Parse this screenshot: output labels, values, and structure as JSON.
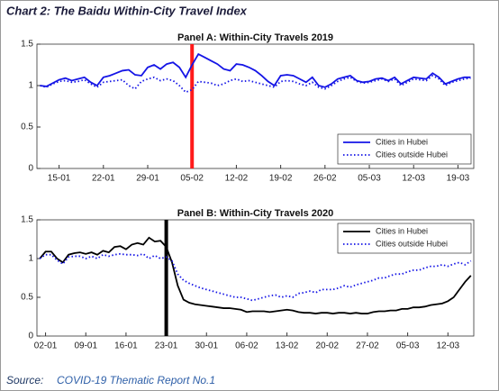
{
  "header": "Chart 2: The Baidu Within-City Travel Index",
  "source_label": "Source:",
  "source": "COVID-19 Thematic Report No.1",
  "chart_data": [
    {
      "type": "line",
      "title": "Panel A: Within-City Travels 2019",
      "categories": [
        null,
        null,
        null,
        "15-01",
        null,
        null,
        null,
        null,
        null,
        null,
        "22-01",
        null,
        null,
        null,
        null,
        null,
        null,
        "29-01",
        null,
        null,
        null,
        null,
        null,
        null,
        "05-02",
        null,
        null,
        null,
        null,
        null,
        null,
        "12-02",
        null,
        null,
        null,
        null,
        null,
        null,
        "19-02",
        null,
        null,
        null,
        null,
        null,
        null,
        "26-02",
        null,
        null,
        null,
        null,
        null,
        null,
        "05-03",
        null,
        null,
        null,
        null,
        null,
        null,
        "12-03",
        null,
        null,
        null,
        null,
        null,
        null,
        "19-03",
        null,
        null
      ],
      "series": [
        {
          "name": "Cities in Hubei",
          "color": "#1414e6",
          "style": "solid",
          "values": [
            1.0,
            0.99,
            1.03,
            1.07,
            1.09,
            1.06,
            1.08,
            1.1,
            1.04,
            1.0,
            1.1,
            1.12,
            1.15,
            1.18,
            1.19,
            1.13,
            1.12,
            1.22,
            1.25,
            1.2,
            1.26,
            1.28,
            1.22,
            1.1,
            1.25,
            1.38,
            1.34,
            1.3,
            1.26,
            1.2,
            1.18,
            1.26,
            1.25,
            1.22,
            1.18,
            1.12,
            1.05,
            1.0,
            1.12,
            1.13,
            1.12,
            1.08,
            1.04,
            1.1,
            1.0,
            0.98,
            1.02,
            1.08,
            1.1,
            1.12,
            1.06,
            1.04,
            1.05,
            1.08,
            1.09,
            1.06,
            1.1,
            1.02,
            1.06,
            1.1,
            1.09,
            1.08,
            1.15,
            1.1,
            1.02,
            1.05,
            1.08,
            1.1,
            1.1
          ]
        },
        {
          "name": "Cities outside Hubei",
          "color": "#1414e6",
          "style": "dotted",
          "values": [
            1.0,
            0.98,
            1.02,
            1.05,
            1.06,
            1.04,
            1.05,
            1.07,
            1.02,
            0.98,
            1.04,
            1.05,
            1.06,
            1.07,
            1.0,
            0.96,
            1.05,
            1.08,
            1.1,
            1.06,
            1.08,
            1.06,
            1.0,
            0.92,
            0.95,
            1.05,
            1.04,
            1.03,
            1.0,
            1.02,
            1.06,
            1.08,
            1.05,
            1.06,
            1.04,
            1.02,
            1.0,
            0.98,
            1.05,
            1.06,
            1.05,
            1.02,
            1.0,
            1.04,
            0.98,
            0.96,
            1.0,
            1.05,
            1.08,
            1.1,
            1.05,
            1.03,
            1.04,
            1.06,
            1.08,
            1.05,
            1.08,
            1.0,
            1.04,
            1.08,
            1.07,
            1.06,
            1.12,
            1.08,
            1.0,
            1.04,
            1.06,
            1.08,
            1.09
          ]
        }
      ],
      "vline": {
        "at": "05-02",
        "color": "#ff1a1a"
      },
      "ylim": [
        0,
        1.5
      ],
      "yticks": [
        0,
        0.5,
        1,
        1.5
      ],
      "legend": "lower right",
      "grid": false
    },
    {
      "type": "line",
      "title": "Panel B: Within-City Travels 2020",
      "categories": [
        null,
        "02-01",
        null,
        null,
        null,
        null,
        null,
        null,
        "09-01",
        null,
        null,
        null,
        null,
        null,
        null,
        "16-01",
        null,
        null,
        null,
        null,
        null,
        null,
        "23-01",
        null,
        null,
        null,
        null,
        null,
        null,
        "30-01",
        null,
        null,
        null,
        null,
        null,
        null,
        "06-02",
        null,
        null,
        null,
        null,
        null,
        null,
        "13-02",
        null,
        null,
        null,
        null,
        null,
        null,
        "20-02",
        null,
        null,
        null,
        null,
        null,
        null,
        "27-02",
        null,
        null,
        null,
        null,
        null,
        null,
        "05-03",
        null,
        null,
        null,
        null,
        null,
        null,
        "12-03",
        null,
        null,
        null,
        null
      ],
      "series": [
        {
          "name": "Cities in Hubei",
          "color": "#000000",
          "style": "solid",
          "values": [
            1.0,
            1.09,
            1.09,
            1.0,
            0.95,
            1.05,
            1.07,
            1.08,
            1.06,
            1.08,
            1.05,
            1.1,
            1.08,
            1.15,
            1.16,
            1.12,
            1.18,
            1.2,
            1.18,
            1.27,
            1.22,
            1.23,
            1.15,
            0.95,
            0.65,
            0.47,
            0.43,
            0.41,
            0.4,
            0.39,
            0.38,
            0.37,
            0.36,
            0.36,
            0.35,
            0.34,
            0.31,
            0.32,
            0.32,
            0.32,
            0.31,
            0.32,
            0.33,
            0.34,
            0.33,
            0.31,
            0.3,
            0.3,
            0.29,
            0.3,
            0.3,
            0.29,
            0.3,
            0.3,
            0.29,
            0.3,
            0.29,
            0.29,
            0.31,
            0.32,
            0.32,
            0.33,
            0.33,
            0.35,
            0.35,
            0.37,
            0.37,
            0.38,
            0.4,
            0.41,
            0.42,
            0.45,
            0.5,
            0.6,
            0.7,
            0.78
          ]
        },
        {
          "name": "Cities outside Hubei",
          "color": "#1414e6",
          "style": "dotted",
          "values": [
            1.0,
            1.05,
            1.05,
            0.98,
            0.93,
            1.02,
            1.03,
            1.03,
            1.0,
            1.03,
            1.0,
            1.05,
            1.03,
            1.05,
            1.06,
            1.05,
            1.05,
            1.04,
            1.06,
            1.0,
            1.04,
            1.0,
            1.02,
            0.97,
            0.8,
            0.72,
            0.68,
            0.65,
            0.62,
            0.6,
            0.58,
            0.56,
            0.54,
            0.52,
            0.5,
            0.5,
            0.48,
            0.46,
            0.48,
            0.5,
            0.52,
            0.53,
            0.5,
            0.52,
            0.5,
            0.55,
            0.56,
            0.58,
            0.56,
            0.6,
            0.6,
            0.6,
            0.62,
            0.65,
            0.63,
            0.66,
            0.68,
            0.7,
            0.72,
            0.75,
            0.75,
            0.78,
            0.8,
            0.8,
            0.83,
            0.85,
            0.85,
            0.88,
            0.9,
            0.9,
            0.92,
            0.9,
            0.93,
            0.95,
            0.92,
            0.97
          ]
        }
      ],
      "vline": {
        "at": "23-01",
        "color": "#000000"
      },
      "ylim": [
        0,
        1.5
      ],
      "yticks": [
        0,
        0.5,
        1,
        1.5
      ],
      "legend": "upper right",
      "grid": false
    }
  ]
}
